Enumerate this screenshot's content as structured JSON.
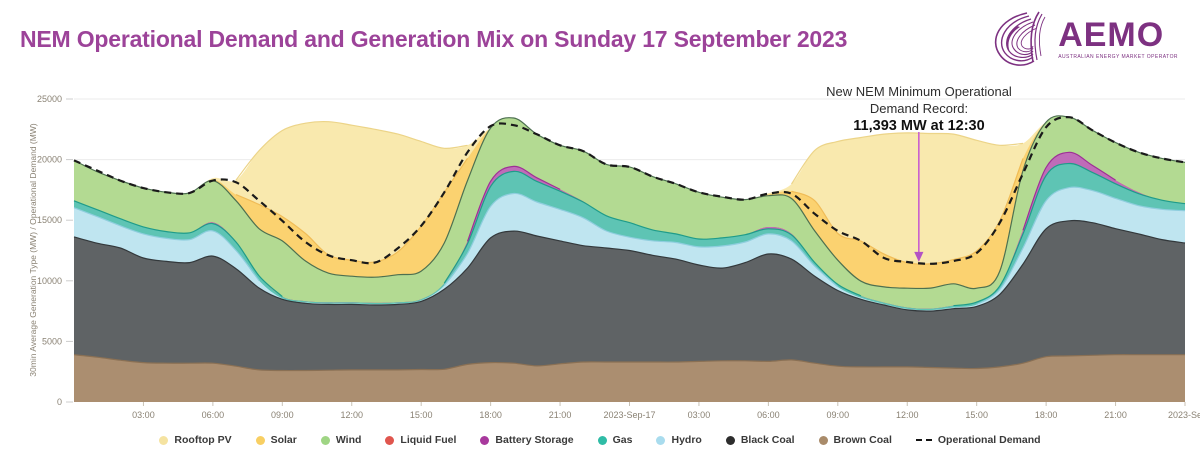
{
  "header": {
    "title": "NEM Operational Demand and Generation Mix on Sunday 17 September 2023",
    "logo": {
      "text": "AEMO",
      "subtext": "AUSTRALIAN ENERGY MARKET OPERATOR"
    }
  },
  "annotation": {
    "line1": "New NEM Minimum Operational",
    "line2": "Demand Record:",
    "line3": "11,393 MW at 12:30"
  },
  "colors": {
    "title_purple": "#9c4399",
    "logo_purple": "#7d3181",
    "arrow_magenta": "#c95fd0",
    "demand_line": "#1a1a1a",
    "grid": "#ebebeb",
    "axis_text": "#8a8274"
  },
  "chart_data": {
    "type": "area",
    "stacked": true,
    "title": "NEM Operational Demand and Generation Mix on Sunday 17 September 2023",
    "ylabel": "30min Average Generation Type (MW) / Operational Demand (MW)",
    "xlabel": "",
    "ylim": [
      0,
      25000
    ],
    "grid": "horizontal",
    "y_ticks": [
      0,
      5000,
      10000,
      15000,
      20000,
      25000
    ],
    "x_hours_span": 48,
    "x_ticks": [
      {
        "hour": 3,
        "label": "03:00"
      },
      {
        "hour": 6,
        "label": "06:00"
      },
      {
        "hour": 9,
        "label": "09:00"
      },
      {
        "hour": 12,
        "label": "12:00"
      },
      {
        "hour": 15,
        "label": "15:00"
      },
      {
        "hour": 18,
        "label": "18:00"
      },
      {
        "hour": 21,
        "label": "21:00"
      },
      {
        "hour": 24,
        "label": "2023-Sep-17"
      },
      {
        "hour": 27,
        "label": "03:00"
      },
      {
        "hour": 30,
        "label": "06:00"
      },
      {
        "hour": 33,
        "label": "09:00"
      },
      {
        "hour": 36,
        "label": "12:00"
      },
      {
        "hour": 39,
        "label": "15:00"
      },
      {
        "hour": 42,
        "label": "18:00"
      },
      {
        "hour": 45,
        "label": "21:00"
      },
      {
        "hour": 48,
        "label": "2023-Se"
      }
    ],
    "series_stack_order": "bottom_to_top",
    "series": [
      {
        "name": "Brown Coal",
        "slug": "brown-coal",
        "fill": "#ab8e70",
        "edge": "#8a7054",
        "values": [
          3900,
          3700,
          3450,
          3250,
          3200,
          3200,
          3200,
          2950,
          2650,
          2600,
          2600,
          2620,
          2650,
          2650,
          2650,
          2680,
          2700,
          3100,
          3250,
          3200,
          2980,
          3150,
          3300,
          3300,
          3300,
          3300,
          3300,
          3350,
          3400,
          3400,
          3350,
          3470,
          3200,
          2950,
          2900,
          2900,
          2900,
          2850,
          2800,
          2760,
          2900,
          3200,
          3740,
          3800,
          3850,
          3900,
          3900,
          3900,
          3900
        ]
      },
      {
        "name": "Black Coal",
        "slug": "black-coal",
        "fill": "#5f6365",
        "edge": "#33383b",
        "values": [
          9720,
          9400,
          9260,
          8630,
          8400,
          8300,
          8840,
          8050,
          6750,
          5870,
          5540,
          5430,
          5400,
          5350,
          5400,
          5620,
          6600,
          7950,
          10290,
          10900,
          10720,
          10140,
          9600,
          9410,
          9200,
          8800,
          8490,
          7950,
          7650,
          8100,
          8860,
          8320,
          7180,
          6250,
          5570,
          5100,
          4700,
          4650,
          4900,
          5130,
          5980,
          8180,
          10550,
          11150,
          10940,
          10400,
          9970,
          9500,
          9220
        ]
      },
      {
        "name": "Hydro",
        "slug": "hydro",
        "fill": "#bfe5f0",
        "edge": "#8fcede",
        "values": [
          2410,
          2200,
          1830,
          1990,
          1900,
          1900,
          2080,
          1500,
          600,
          80,
          80,
          80,
          80,
          80,
          80,
          80,
          300,
          1200,
          2600,
          3100,
          2800,
          2600,
          2300,
          1400,
          1100,
          1200,
          1370,
          1500,
          1820,
          1700,
          1660,
          1500,
          830,
          300,
          130,
          80,
          80,
          80,
          100,
          150,
          400,
          1330,
          2320,
          2740,
          2650,
          2500,
          2330,
          2500,
          2660
        ]
      },
      {
        "name": "Gas",
        "slug": "gas",
        "fill": "#5ec4b4",
        "edge": "#1f9c8a",
        "values": [
          570,
          570,
          580,
          580,
          560,
          560,
          600,
          700,
          400,
          150,
          100,
          100,
          100,
          100,
          100,
          100,
          200,
          800,
          1650,
          1830,
          1700,
          1500,
          1300,
          1250,
          1200,
          900,
          710,
          650,
          670,
          600,
          420,
          500,
          300,
          200,
          150,
          120,
          120,
          120,
          150,
          200,
          300,
          1160,
          2080,
          1990,
          1500,
          1200,
          990,
          750,
          580
        ]
      },
      {
        "name": "Battery Storage",
        "slug": "battery-storage",
        "fill": "#bf6cb8",
        "edge": "#9e2f96",
        "values": [
          0,
          0,
          0,
          0,
          0,
          0,
          100,
          50,
          0,
          0,
          0,
          0,
          0,
          0,
          0,
          0,
          0,
          200,
          420,
          410,
          300,
          150,
          50,
          0,
          0,
          0,
          0,
          0,
          0,
          0,
          150,
          100,
          0,
          0,
          0,
          0,
          0,
          0,
          0,
          0,
          0,
          300,
          660,
          920,
          580,
          300,
          100,
          0,
          0
        ]
      },
      {
        "name": "Liquid Fuel",
        "slug": "liquid-fuel",
        "fill": "#e0564e",
        "edge": "#b93c35",
        "values": [
          0,
          0,
          0,
          0,
          0,
          0,
          0,
          0,
          0,
          0,
          0,
          0,
          0,
          0,
          0,
          0,
          0,
          0,
          0,
          0,
          0,
          0,
          0,
          0,
          0,
          0,
          0,
          0,
          0,
          0,
          0,
          0,
          0,
          0,
          0,
          0,
          0,
          0,
          0,
          0,
          0,
          0,
          0,
          0,
          0,
          0,
          0,
          0,
          0
        ]
      },
      {
        "name": "Wind",
        "slug": "wind",
        "fill": "#b3da92",
        "edge": "#4d7050",
        "values": [
          3330,
          3130,
          3150,
          3200,
          3240,
          3290,
          3450,
          3360,
          3890,
          4590,
          3310,
          2400,
          2150,
          2120,
          2270,
          2320,
          3320,
          5020,
          4400,
          3990,
          3590,
          3640,
          4150,
          4240,
          4600,
          4400,
          4130,
          3850,
          3360,
          2900,
          2580,
          2900,
          2610,
          2000,
          1220,
          1300,
          1590,
          1700,
          1800,
          1150,
          1220,
          4930,
          3740,
          2900,
          2900,
          3100,
          3310,
          3450,
          3410
        ]
      },
      {
        "name": "Solar",
        "slug": "solar",
        "fill": "#fbd270",
        "edge": "#f0bc57",
        "values": [
          0,
          0,
          0,
          0,
          0,
          0,
          100,
          500,
          2000,
          2010,
          2270,
          1500,
          1320,
          1250,
          1900,
          3700,
          4180,
          1830,
          0,
          0,
          0,
          0,
          0,
          0,
          0,
          0,
          0,
          0,
          0,
          0,
          100,
          600,
          2490,
          2200,
          3300,
          2700,
          2100,
          2000,
          2000,
          3070,
          4150,
          1000,
          0,
          0,
          0,
          0,
          0,
          0,
          0
        ]
      },
      {
        "name": "Rooftop PV",
        "slug": "rooftop-pv",
        "fill": "#f9e9ae",
        "edge": "#ecd488",
        "values": [
          0,
          0,
          0,
          0,
          0,
          0,
          100,
          1200,
          4460,
          7100,
          9100,
          11000,
          11140,
          10950,
          9700,
          7000,
          3630,
          1080,
          0,
          0,
          0,
          0,
          0,
          0,
          0,
          0,
          0,
          0,
          0,
          0,
          100,
          600,
          4150,
          7600,
          8550,
          9900,
          10710,
          10750,
          10350,
          9130,
          6230,
          1240,
          0,
          0,
          0,
          0,
          0,
          0,
          0
        ]
      }
    ],
    "demand": {
      "name": "Operational Demand",
      "style": "dashed",
      "color": "#1a1a1a",
      "values": [
        19930,
        19100,
        18270,
        17650,
        17300,
        17250,
        18270,
        18130,
        16610,
        14950,
        13200,
        12100,
        11700,
        11500,
        12700,
        14540,
        17300,
        20600,
        22760,
        22840,
        22090,
        21180,
        20700,
        19600,
        19400,
        18600,
        18000,
        17300,
        16940,
        16700,
        17190,
        17190,
        15530,
        14120,
        13290,
        11880,
        11550,
        11400,
        11630,
        12290,
        14790,
        18850,
        22670,
        23500,
        22420,
        21400,
        20600,
        20100,
        19770
      ]
    },
    "record_marker": {
      "hour": 36.5,
      "value_mw": 11393,
      "label": "11,393 MW at 12:30"
    }
  },
  "legend": {
    "items": [
      {
        "label": "Rooftop PV",
        "marker": "dot",
        "color": "#f5e3a1"
      },
      {
        "label": "Solar",
        "marker": "dot",
        "color": "#f8cf63"
      },
      {
        "label": "Wind",
        "marker": "dot",
        "color": "#9fd584"
      },
      {
        "label": "Liquid Fuel",
        "marker": "dot",
        "color": "#e0564e"
      },
      {
        "label": "Battery Storage",
        "marker": "dot",
        "color": "#a8399d"
      },
      {
        "label": "Gas",
        "marker": "dot",
        "color": "#2fbca6"
      },
      {
        "label": "Hydro",
        "marker": "dot",
        "color": "#a9dcee"
      },
      {
        "label": "Black Coal",
        "marker": "dot",
        "color": "#2d2d2d"
      },
      {
        "label": "Brown Coal",
        "marker": "dot",
        "color": "#a98b6a"
      },
      {
        "label": "Operational Demand",
        "marker": "dash",
        "color": "#141414"
      }
    ]
  }
}
